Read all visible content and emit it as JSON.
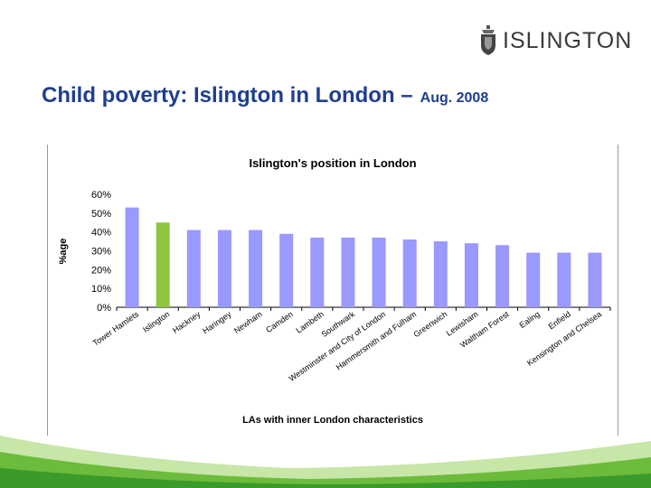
{
  "logo": {
    "text": "ISLINGTON",
    "icon": "crest-icon"
  },
  "slide": {
    "title": "Child poverty: Islington in London –",
    "date": "Aug. 2008"
  },
  "colors": {
    "title": "#1f3f8f",
    "highlight_bar": "#8cc63f",
    "bar": "#9999ff",
    "footer_green": "#6cbb3c"
  },
  "chart_data": {
    "type": "bar",
    "title": "Islington's position in London",
    "xlabel": "LAs with inner London characteristics",
    "ylabel": "%age",
    "ylim": [
      0,
      60
    ],
    "yticks": [
      "0%",
      "10%",
      "20%",
      "30%",
      "40%",
      "50%",
      "60%"
    ],
    "categories": [
      "Tower Hamlets",
      "Islington",
      "Hackney",
      "Haringey",
      "Newham",
      "Camden",
      "Lambeth",
      "Southwark",
      "Westminster and City of London",
      "Hammersmith and Fulham",
      "Greenwich",
      "Lewisham",
      "Waltham Forest",
      "Ealing",
      "Enfield",
      "Kensington and Chelsea"
    ],
    "values": [
      53,
      45,
      41,
      41,
      41,
      39,
      37,
      37,
      37,
      36,
      35,
      34,
      33,
      29,
      29,
      29
    ],
    "highlight_index": 1,
    "grid": false,
    "legend": "none"
  }
}
